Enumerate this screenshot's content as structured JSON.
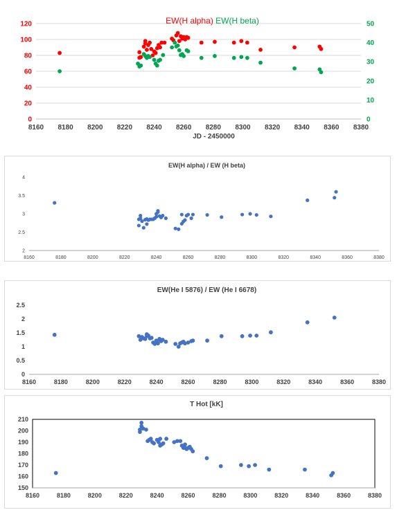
{
  "chart_data": [
    {
      "type": "scatter",
      "title_parts": [
        {
          "text": "EW(H alpha)",
          "color": "#ff0000"
        },
        {
          "text": "EW(H beta)",
          "color": "#00a651"
        }
      ],
      "xlabel": "JD - 2450000",
      "xlim": [
        8160,
        8380
      ],
      "xticks": [
        8160,
        8180,
        8200,
        8220,
        8240,
        8260,
        8280,
        8300,
        8320,
        8340,
        8360,
        8380
      ],
      "ylim_left": [
        0,
        120
      ],
      "yticks_left": [
        0,
        20,
        40,
        60,
        80,
        100,
        120
      ],
      "ylim_right": [
        0,
        50
      ],
      "yticks_right": [
        0,
        10,
        20,
        30,
        40,
        50
      ],
      "left_axis_color": "#ff0000",
      "right_axis_color": "#00a651",
      "grid": true,
      "series": [
        {
          "name": "EW(H alpha)",
          "color": "#ff0000",
          "axis": "left",
          "x": [
            8176,
            8230,
            8230,
            8231,
            8233,
            8234,
            8234,
            8235,
            8236,
            8237,
            8238,
            8239,
            8240,
            8241,
            8242,
            8243,
            8244,
            8245,
            8247,
            8252,
            8253,
            8255,
            8256,
            8257,
            8258,
            8259,
            8260,
            8261,
            8262,
            8263,
            8272,
            8281,
            8294,
            8299,
            8303,
            8312,
            8335,
            8352,
            8353
          ],
          "y": [
            83,
            77,
            84,
            78,
            91,
            95,
            98,
            87,
            93,
            96,
            88,
            80,
            85,
            83,
            89,
            93,
            90,
            96,
            96,
            101,
            99,
            105,
            108,
            98,
            104,
            101,
            103,
            100,
            103,
            102,
            96,
            97,
            96,
            98,
            96,
            87,
            90,
            91,
            88
          ]
        },
        {
          "name": "EW(H beta)",
          "color": "#00a651",
          "axis": "right",
          "x": [
            8176,
            8229,
            8230,
            8231,
            8233,
            8234,
            8235,
            8236,
            8237,
            8240,
            8241,
            8242,
            8243,
            8244,
            8246,
            8252,
            8254,
            8255,
            8256,
            8257,
            8258,
            8259,
            8260,
            8262,
            8263,
            8272,
            8281,
            8294,
            8299,
            8303,
            8312,
            8335,
            8352,
            8353
          ],
          "y": [
            25,
            29,
            27.5,
            28,
            34,
            33,
            32,
            33,
            32.5,
            31,
            29,
            28,
            30.5,
            31,
            33.5,
            37.5,
            40,
            38,
            38.5,
            36,
            33.5,
            34,
            33,
            36,
            35.5,
            32,
            33,
            32,
            32.5,
            32,
            29.5,
            26.5,
            26,
            24.5
          ]
        }
      ]
    },
    {
      "type": "scatter",
      "title": "EW(H alpha) / EW (H beta)",
      "xlim": [
        8160,
        8380
      ],
      "xticks": [
        8160,
        8180,
        8200,
        8220,
        8240,
        8260,
        8280,
        8300,
        8320,
        8340,
        8360,
        8380
      ],
      "ylim": [
        2,
        4
      ],
      "yticks": [
        "2",
        "2.5",
        "3",
        "3.5",
        "4"
      ],
      "grid": false,
      "series": [
        {
          "color": "#4472c4",
          "x": [
            8176,
            8229,
            8229,
            8230,
            8230,
            8231,
            8232,
            8233,
            8234,
            8234,
            8235,
            8236,
            8237,
            8238,
            8239,
            8240,
            8240,
            8241,
            8241,
            8242,
            8243,
            8244,
            8246,
            8252,
            8254,
            8256,
            8256,
            8257,
            8258,
            8259,
            8260,
            8262,
            8263,
            8272,
            8281,
            8294,
            8299,
            8303,
            8312,
            8335,
            8352,
            8353
          ],
          "y": [
            3.3,
            2.68,
            2.85,
            2.95,
            2.88,
            2.8,
            2.62,
            2.84,
            2.86,
            2.72,
            2.83,
            2.85,
            2.85,
            2.85,
            2.88,
            2.92,
            3.0,
            3.05,
            3.08,
            2.94,
            2.9,
            2.95,
            2.88,
            2.6,
            2.58,
            2.73,
            2.98,
            2.79,
            2.83,
            2.95,
            2.98,
            2.88,
            2.98,
            2.97,
            2.91,
            2.98,
            3.0,
            2.97,
            2.93,
            3.37,
            3.44,
            3.6
          ]
        }
      ]
    },
    {
      "type": "scatter",
      "title": "EW(He I 5876) / EW (He I 6678)",
      "xlim": [
        8160,
        8380
      ],
      "xticks": [
        8160,
        8180,
        8200,
        8220,
        8240,
        8260,
        8280,
        8300,
        8320,
        8340,
        8360,
        8380
      ],
      "ylim": [
        0,
        2.5
      ],
      "yticks": [
        "0",
        "0.5",
        "1",
        "1.5",
        "2",
        "2.5"
      ],
      "grid": false,
      "series": [
        {
          "color": "#4472c4",
          "x": [
            8176,
            8229,
            8230,
            8231,
            8232,
            8233,
            8234,
            8234,
            8235,
            8236,
            8237,
            8238,
            8239,
            8240,
            8241,
            8242,
            8242,
            8243,
            8244,
            8246,
            8252,
            8254,
            8255,
            8256,
            8257,
            8258,
            8260,
            8262,
            8263,
            8272,
            8281,
            8294,
            8299,
            8303,
            8312,
            8335,
            8352
          ],
          "y": [
            1.43,
            1.38,
            1.25,
            1.35,
            1.3,
            1.28,
            1.38,
            1.45,
            1.4,
            1.3,
            1.32,
            1.15,
            1.1,
            1.22,
            1.12,
            1.25,
            1.28,
            1.2,
            1.25,
            1.18,
            1.1,
            1.0,
            1.12,
            1.15,
            1.18,
            1.12,
            1.15,
            1.2,
            1.22,
            1.22,
            1.38,
            1.38,
            1.4,
            1.4,
            1.52,
            1.88,
            2.05
          ]
        }
      ]
    },
    {
      "type": "scatter",
      "title": "T Hot [kK]",
      "xlim": [
        8160,
        8380
      ],
      "xticks": [
        8160,
        8180,
        8200,
        8220,
        8240,
        8260,
        8280,
        8300,
        8320,
        8340,
        8360,
        8380
      ],
      "ylim": [
        150,
        210
      ],
      "yticks": [
        "150",
        "160",
        "170",
        "180",
        "190",
        "200",
        "210"
      ],
      "grid": false,
      "boxed": true,
      "series": [
        {
          "color": "#4472c4",
          "x": [
            8175,
            8229,
            8229,
            8230,
            8230,
            8231,
            8233,
            8234,
            8235,
            8236,
            8237,
            8238,
            8240,
            8241,
            8242,
            8242,
            8243,
            8244,
            8246,
            8251,
            8253,
            8255,
            8256,
            8257,
            8258,
            8258,
            8259,
            8260,
            8261,
            8262,
            8263,
            8272,
            8281,
            8294,
            8299,
            8303,
            8312,
            8335,
            8352,
            8353
          ],
          "y": [
            163,
            199,
            201,
            207,
            204,
            202,
            201,
            191,
            192,
            193,
            190,
            189,
            192,
            190,
            187,
            193,
            188,
            189,
            193,
            190,
            191,
            191,
            187,
            185,
            188,
            185,
            184,
            185,
            186,
            184,
            182,
            176,
            169,
            170,
            169,
            170,
            166,
            166,
            161,
            163
          ]
        }
      ]
    }
  ]
}
